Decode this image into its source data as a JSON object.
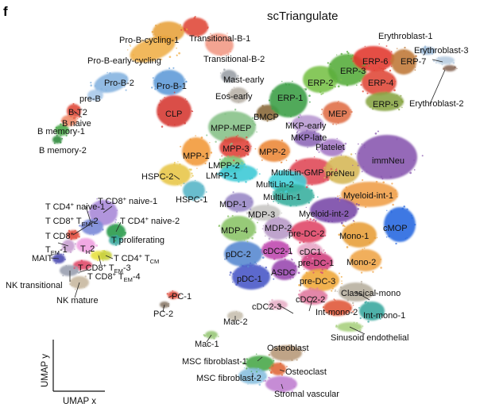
{
  "panel_letter": "f",
  "chart_data": {
    "type": "scatter",
    "title": "scTriangulate",
    "xlabel": "UMAP x",
    "ylabel": "UMAP y",
    "grid": false,
    "legend": "none",
    "axis_ticks": "none",
    "clusters": [
      {
        "name": "Pro-B-cycling-1",
        "color": "#e8a33d"
      },
      {
        "name": "Transitional-B-1",
        "color": "#e04a3a"
      },
      {
        "name": "Pro-B-early-cycling",
        "color": "#f0b04a"
      },
      {
        "name": "Transitional-B-2",
        "color": "#f29a86"
      },
      {
        "name": "Pro-B-2",
        "color": "#86b4e0"
      },
      {
        "name": "Pro-B-1",
        "color": "#5f9bd8"
      },
      {
        "name": "pre-B",
        "color": "#a9c9ea"
      },
      {
        "name": "B-T2",
        "color": "#e04a3a"
      },
      {
        "name": "B naive",
        "color": "#f08a6a"
      },
      {
        "name": "B memory-1",
        "color": "#4aa84a"
      },
      {
        "name": "B memory-2",
        "color": "#2f8a3a"
      },
      {
        "name": "CLP",
        "color": "#d63a34"
      },
      {
        "name": "Mast-early",
        "color": "#9aa0a6"
      },
      {
        "name": "Eos-early",
        "color": "#b9b2a8"
      },
      {
        "name": "BMCP",
        "color": "#8a6a3a"
      },
      {
        "name": "ERP-1",
        "color": "#3ea048"
      },
      {
        "name": "ERP-2",
        "color": "#7ac24a"
      },
      {
        "name": "ERP-3",
        "color": "#5aae3e"
      },
      {
        "name": "ERP-4",
        "color": "#e04a3a"
      },
      {
        "name": "ERP-5",
        "color": "#8aa646"
      },
      {
        "name": "ERP-6",
        "color": "#e23a32"
      },
      {
        "name": "ERP-7",
        "color": "#c07a3a"
      },
      {
        "name": "Erythroblast-1",
        "color": "#9ab8d6"
      },
      {
        "name": "Erythroblast-2",
        "color": "#8a6a5a"
      },
      {
        "name": "Erythroblast-3",
        "color": "#b8cce0"
      },
      {
        "name": "MEP",
        "color": "#e07048"
      },
      {
        "name": "MKP-early",
        "color": "#b99ad2"
      },
      {
        "name": "MKP-late",
        "color": "#8e6ab8"
      },
      {
        "name": "Platelet",
        "color": "#a67ac6"
      },
      {
        "name": "MPP-MEP",
        "color": "#88c28a"
      },
      {
        "name": "MPP-1",
        "color": "#f29a3a"
      },
      {
        "name": "MPP-3",
        "color": "#e0433a"
      },
      {
        "name": "MPP-2",
        "color": "#ec8a3a"
      },
      {
        "name": "LMPP-2",
        "color": "#7cc87a"
      },
      {
        "name": "LMPP-1",
        "color": "#3ecad6"
      },
      {
        "name": "HSPC-2",
        "color": "#e8c64a"
      },
      {
        "name": "HSPC-1",
        "color": "#5ab6c8"
      },
      {
        "name": "MultiLin-GMP",
        "color": "#e04a5a"
      },
      {
        "name": "MultiLin-2",
        "color": "#44d0d8"
      },
      {
        "name": "MultiLin-1",
        "color": "#3ab0a0"
      },
      {
        "name": "preNeu",
        "color": "#d6b85a"
      },
      {
        "name": "immNeu",
        "color": "#8a5ab0"
      },
      {
        "name": "MDP-1",
        "color": "#9a8ac6"
      },
      {
        "name": "MDP-3",
        "color": "#c8c6c4"
      },
      {
        "name": "MDP-4",
        "color": "#8cc46a"
      },
      {
        "name": "MDP-2",
        "color": "#b89ac8"
      },
      {
        "name": "Myeloid-int-1",
        "color": "#f0a04a"
      },
      {
        "name": "Myeloid-int-2",
        "color": "#7a4aa8"
      },
      {
        "name": "cMOP",
        "color": "#2a6ae0"
      },
      {
        "name": "Mono-1",
        "color": "#e8a03a"
      },
      {
        "name": "Mono-2",
        "color": "#f0a64a"
      },
      {
        "name": "pre-DC-2",
        "color": "#e0486a"
      },
      {
        "name": "pDC-2",
        "color": "#5a8ad0"
      },
      {
        "name": "cDC2-1",
        "color": "#c04ab0"
      },
      {
        "name": "cDC1",
        "color": "#e8a6c6"
      },
      {
        "name": "pre-DC-1",
        "color": "#d04080"
      },
      {
        "name": "pDC-1",
        "color": "#4a5ac8"
      },
      {
        "name": "ASDC",
        "color": "#9a4ab0"
      },
      {
        "name": "pre-DC-3",
        "color": "#f0a83a"
      },
      {
        "name": "cDC2-2",
        "color": "#e07aa0"
      },
      {
        "name": "cDC2-3",
        "color": "#e8b0c8"
      },
      {
        "name": "Classical-mono",
        "color": "#b8b0a0"
      },
      {
        "name": "Int-mono-2",
        "color": "#e05a3a"
      },
      {
        "name": "Int-mono-1",
        "color": "#3aa8a0"
      },
      {
        "name": "Mac-2",
        "color": "#c8c0b0"
      },
      {
        "name": "Mac-1",
        "color": "#98c878"
      },
      {
        "name": "Sinusoid endothelial",
        "color": "#a8d080"
      },
      {
        "name": "PC-1",
        "color": "#e04a3a"
      },
      {
        "name": "PC-2",
        "color": "#8a7a6a"
      },
      {
        "name": "Osteoblast",
        "color": "#b89a7a"
      },
      {
        "name": "MSC fibroblast-1",
        "color": "#4aa84a"
      },
      {
        "name": "MSC fibroblast-2",
        "color": "#8ac0e0"
      },
      {
        "name": "Osteoclast",
        "color": "#e06a3a"
      },
      {
        "name": "Stromal vascular",
        "color": "#c080d0"
      },
      {
        "name": "T CD4+ naive-1",
        "color": "#7a8ad8"
      },
      {
        "name": "T CD8+ naive-1",
        "color": "#a88ad8"
      },
      {
        "name": "T CD4+ naive-2",
        "color": "#2a9a4a"
      },
      {
        "name": "T CD8+ TEM-2",
        "color": "#e04a3a"
      },
      {
        "name": "T CD8+ TEM-1",
        "color": "#c8a0d0"
      },
      {
        "name": "TH2",
        "color": "#f0a0e0"
      },
      {
        "name": "T proliferating",
        "color": "#3aa8a0"
      },
      {
        "name": "MAIT",
        "color": "#4a4ab0"
      },
      {
        "name": "T CD8+ TEM-3",
        "color": "#e8e040"
      },
      {
        "name": "T CD4+ TCM",
        "color": "#c8d040"
      },
      {
        "name": "T CD8+ TEM-4",
        "color": "#e04a6a"
      },
      {
        "name": "NK transitional",
        "color": "#9aa0b0"
      },
      {
        "name": "NK mature",
        "color": "#c8b8a0"
      }
    ]
  },
  "labels": {
    "pro_b_cycling_1": "Pro-B-cycling-1",
    "transitional_b_1": "Transitional-B-1",
    "pro_b_early_cycling": "Pro-B-early-cycling",
    "transitional_b_2": "Transitional-B-2",
    "pro_b_2": "Pro-B-2",
    "pro_b_1": "Pro-B-1",
    "pre_b": "pre-B",
    "b_t2": "B-T2",
    "b_naive": "B naive",
    "b_memory_1": "B memory-1",
    "b_memory_2": "B memory-2",
    "clp": "CLP",
    "mast_early": "Mast-early",
    "eos_early": "Eos-early",
    "bmcp": "BMCP",
    "erp_1": "ERP-1",
    "erp_2": "ERP-2",
    "erp_3": "ERP-3",
    "erp_4": "ERP-4",
    "erp_5": "ERP-5",
    "erp_6": "ERP-6",
    "erp_7": "ERP-7",
    "erythroblast_1": "Erythroblast-1",
    "erythroblast_3": "Erythroblast-3",
    "erythroblast_2": "Erythroblast-2",
    "mep": "MEP",
    "mkp_early": "MKP-early",
    "mkp_late": "MKP-late",
    "platelet": "Platelet",
    "mpp_mep": "MPP-MEP",
    "mpp_1": "MPP-1",
    "mpp_3": "MPP-3",
    "mpp_2": "MPP-2",
    "lmpp_2": "LMPP-2",
    "lmpp_1": "LMPP-1",
    "hspc_2": "HSPC-2",
    "hspc_1": "HSPC-1",
    "multilin_gmp": "MultiLin-GMP",
    "multilin_2": "MultiLin-2",
    "multilin_1": "MultiLin-1",
    "preneu": "preNeu",
    "immneu": "immNeu",
    "mdp_1": "MDP-1",
    "mdp_3": "MDP-3",
    "mdp_4": "MDP-4",
    "mdp_2": "MDP-2",
    "myeloid_int_1": "Myeloid-int-1",
    "myeloid_int_2": "Myeloid-int-2",
    "cmop": "cMOP",
    "mono_1": "Mono-1",
    "mono_2": "Mono-2",
    "pre_dc_2": "pre-DC-2",
    "pdc_2": "pDC-2",
    "cdc2_1": "cDC2-1",
    "cdc1": "cDC1",
    "pre_dc_1": "pre-DC-1",
    "pdc_1": "pDC-1",
    "asdc": "ASDC",
    "pre_dc_3": "pre-DC-3",
    "cdc2_3": "cDC2-3",
    "cdc2_2": "cDC2-2",
    "classical_mono": "Classical-mono",
    "int_mono_2": "Int-mono-2",
    "int_mono_1": "Int-mono-1",
    "mac_2": "Mac-2",
    "mac_1": "Mac-1",
    "sinusoid_endothelial": "Sinusoid endothelial",
    "pc_1": "PC-1",
    "pc_2": "PC-2",
    "osteoblast": "Osteoblast",
    "msc_fibroblast_1": "MSC fibroblast-1",
    "msc_fibroblast_2": "MSC fibroblast-2",
    "osteoclast": "Osteoclast",
    "stromal_vascular": "Stromal vascular",
    "t_cd4_naive_1": {
      "pre": "T CD4",
      "sup": "+",
      "post": " naive-1"
    },
    "t_cd8_naive_1": {
      "pre": "T CD8",
      "sup": "+",
      "post": " naive-1"
    },
    "t_cd8_tem_2": {
      "pre": "T CD8",
      "sup": "+",
      "mid": " T",
      "sub": "EM",
      "post": "-2"
    },
    "t_cd4_naive_2": {
      "pre": "T CD4",
      "sup": "+",
      "post": " naive-2"
    },
    "t_cd8_tem_1_line1": {
      "pre": "T CD8",
      "sup": "+"
    },
    "t_cd8_tem_1_line2": {
      "pre": "T",
      "sub": "EM",
      "post": "-1"
    },
    "th2": {
      "pre": "T",
      "sub": "H",
      "post": "2"
    },
    "t_proliferating": "T proliferating",
    "mait": "MAIT",
    "t_cd4_tcm": {
      "pre": "T CD4",
      "sup": "+",
      "mid": " T",
      "sub": "CM"
    },
    "t_cd8_tem_3": {
      "pre": "T CD8",
      "sup": "+",
      "mid": " T",
      "sub": "EM",
      "post": "-3"
    },
    "t_cd8_tem_4": {
      "pre": "T CD8",
      "sup": "+",
      "mid": " T",
      "sub": "EM",
      "post": "-4"
    },
    "nk_transitional": "NK transitional",
    "nk_mature": "NK mature"
  }
}
